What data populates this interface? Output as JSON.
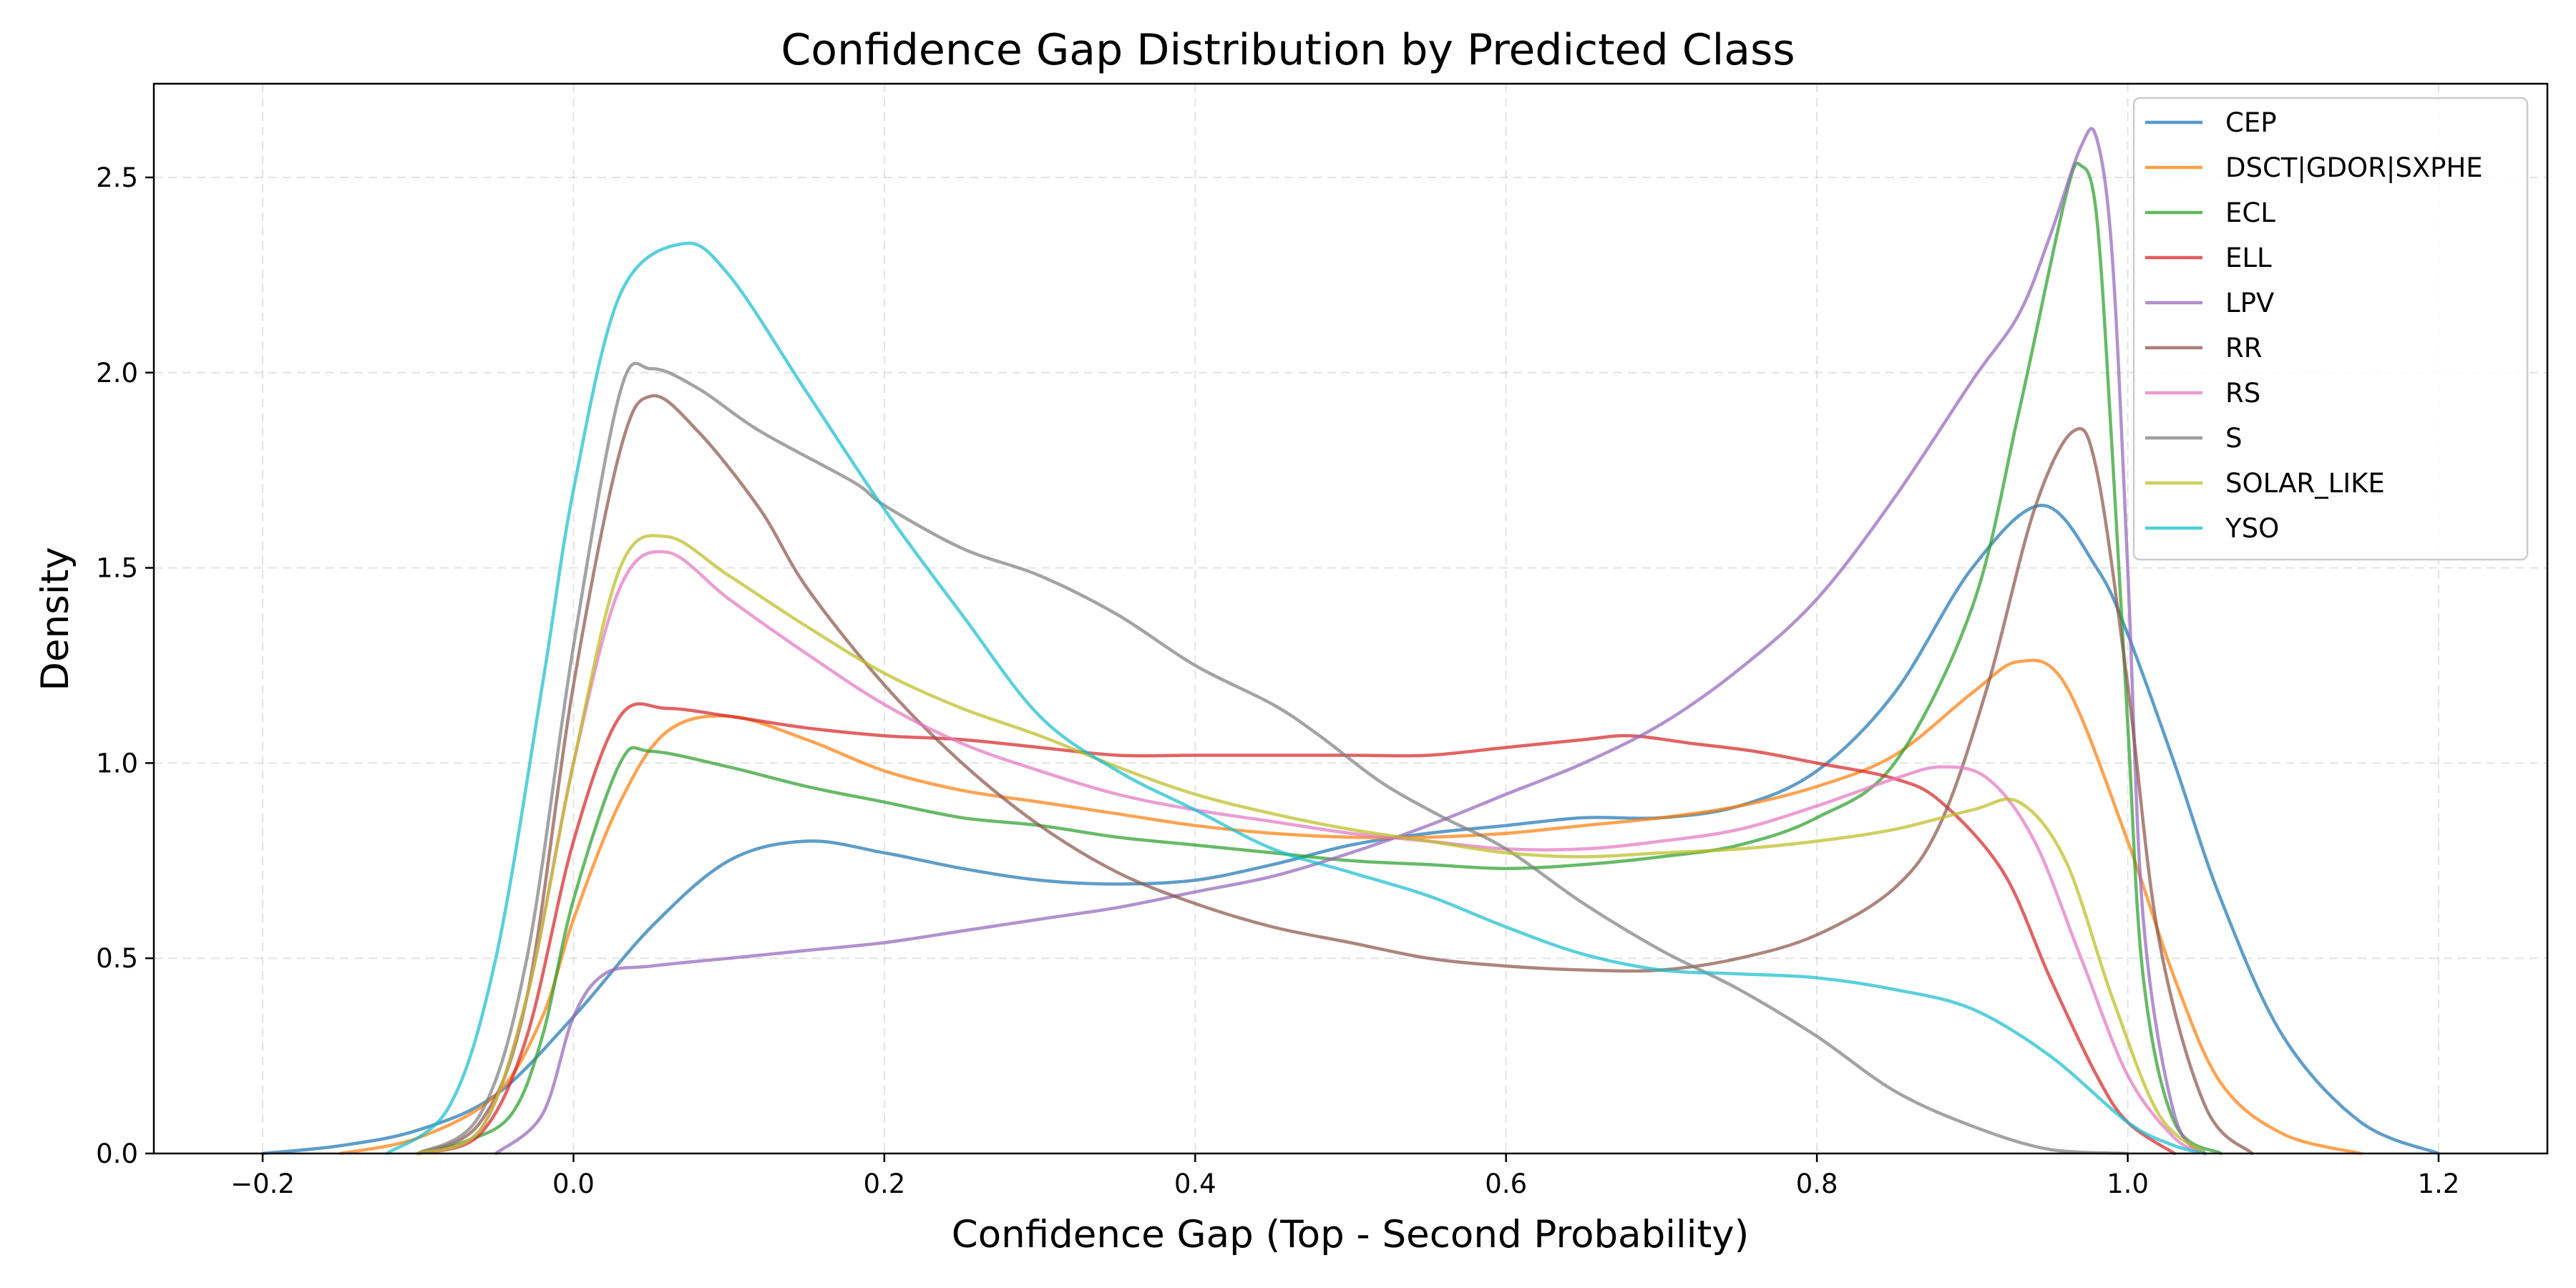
{
  "chart_data": {
    "type": "line",
    "title": "Confidence Gap Distribution by Predicted Class",
    "xlabel": "Confidence Gap (Top - Second Probability)",
    "ylabel": "Density",
    "xlim": [
      -0.27,
      1.27
    ],
    "ylim": [
      0,
      2.74
    ],
    "xticks": [
      -0.2,
      0.0,
      0.2,
      0.4,
      0.6,
      0.8,
      1.0,
      1.2
    ],
    "xtick_labels": [
      "−0.2",
      "0.0",
      "0.2",
      "0.4",
      "0.6",
      "0.8",
      "1.0",
      "1.2"
    ],
    "yticks": [
      0.0,
      0.5,
      1.0,
      1.5,
      2.0,
      2.5
    ],
    "ytick_labels": [
      "0.0",
      "0.5",
      "1.0",
      "1.5",
      "2.0",
      "2.5"
    ],
    "grid": true,
    "legend_position": "top-right",
    "series": [
      {
        "name": "CEP",
        "color": "#1f77b4",
        "points": [
          [
            -0.2,
            0.0
          ],
          [
            -0.15,
            0.02
          ],
          [
            -0.1,
            0.06
          ],
          [
            -0.05,
            0.15
          ],
          [
            0.0,
            0.35
          ],
          [
            0.05,
            0.58
          ],
          [
            0.1,
            0.75
          ],
          [
            0.15,
            0.8
          ],
          [
            0.2,
            0.77
          ],
          [
            0.25,
            0.73
          ],
          [
            0.3,
            0.7
          ],
          [
            0.35,
            0.69
          ],
          [
            0.4,
            0.7
          ],
          [
            0.45,
            0.74
          ],
          [
            0.5,
            0.79
          ],
          [
            0.55,
            0.82
          ],
          [
            0.6,
            0.84
          ],
          [
            0.65,
            0.86
          ],
          [
            0.7,
            0.86
          ],
          [
            0.75,
            0.89
          ],
          [
            0.8,
            0.98
          ],
          [
            0.85,
            1.18
          ],
          [
            0.9,
            1.5
          ],
          [
            0.945,
            1.66
          ],
          [
            0.98,
            1.5
          ],
          [
            1.0,
            1.33
          ],
          [
            1.03,
            1.0
          ],
          [
            1.06,
            0.65
          ],
          [
            1.1,
            0.3
          ],
          [
            1.15,
            0.08
          ],
          [
            1.2,
            0.0
          ]
        ]
      },
      {
        "name": "DSCT|GDOR|SXPHE",
        "color": "#ff7f0e",
        "points": [
          [
            -0.15,
            0.0
          ],
          [
            -0.1,
            0.04
          ],
          [
            -0.05,
            0.15
          ],
          [
            -0.02,
            0.35
          ],
          [
            0.0,
            0.6
          ],
          [
            0.03,
            0.9
          ],
          [
            0.06,
            1.08
          ],
          [
            0.1,
            1.12
          ],
          [
            0.15,
            1.06
          ],
          [
            0.2,
            0.98
          ],
          [
            0.25,
            0.93
          ],
          [
            0.3,
            0.9
          ],
          [
            0.35,
            0.87
          ],
          [
            0.4,
            0.84
          ],
          [
            0.45,
            0.82
          ],
          [
            0.5,
            0.81
          ],
          [
            0.55,
            0.81
          ],
          [
            0.6,
            0.82
          ],
          [
            0.65,
            0.84
          ],
          [
            0.7,
            0.86
          ],
          [
            0.75,
            0.89
          ],
          [
            0.8,
            0.94
          ],
          [
            0.85,
            1.02
          ],
          [
            0.9,
            1.18
          ],
          [
            0.93,
            1.26
          ],
          [
            0.96,
            1.2
          ],
          [
            1.0,
            0.8
          ],
          [
            1.03,
            0.45
          ],
          [
            1.06,
            0.18
          ],
          [
            1.1,
            0.05
          ],
          [
            1.15,
            0.0
          ]
        ]
      },
      {
        "name": "ECL",
        "color": "#2ca02c",
        "points": [
          [
            -0.1,
            0.0
          ],
          [
            -0.07,
            0.03
          ],
          [
            -0.04,
            0.1
          ],
          [
            -0.02,
            0.3
          ],
          [
            0.0,
            0.65
          ],
          [
            0.03,
            1.0
          ],
          [
            0.05,
            1.03
          ],
          [
            0.1,
            0.99
          ],
          [
            0.15,
            0.94
          ],
          [
            0.2,
            0.9
          ],
          [
            0.25,
            0.86
          ],
          [
            0.3,
            0.84
          ],
          [
            0.35,
            0.81
          ],
          [
            0.4,
            0.79
          ],
          [
            0.45,
            0.77
          ],
          [
            0.5,
            0.75
          ],
          [
            0.55,
            0.74
          ],
          [
            0.6,
            0.73
          ],
          [
            0.65,
            0.74
          ],
          [
            0.7,
            0.76
          ],
          [
            0.75,
            0.79
          ],
          [
            0.8,
            0.86
          ],
          [
            0.85,
            1.0
          ],
          [
            0.9,
            1.4
          ],
          [
            0.93,
            1.9
          ],
          [
            0.96,
            2.45
          ],
          [
            0.97,
            2.53
          ],
          [
            0.98,
            2.4
          ],
          [
            0.99,
            1.8
          ],
          [
            1.0,
            1.1
          ],
          [
            1.01,
            0.45
          ],
          [
            1.03,
            0.08
          ],
          [
            1.06,
            0.0
          ]
        ]
      },
      {
        "name": "ELL",
        "color": "#d62728",
        "points": [
          [
            -0.1,
            0.0
          ],
          [
            -0.06,
            0.05
          ],
          [
            -0.03,
            0.3
          ],
          [
            0.0,
            0.8
          ],
          [
            0.03,
            1.12
          ],
          [
            0.06,
            1.14
          ],
          [
            0.1,
            1.12
          ],
          [
            0.15,
            1.09
          ],
          [
            0.2,
            1.07
          ],
          [
            0.25,
            1.06
          ],
          [
            0.3,
            1.04
          ],
          [
            0.35,
            1.02
          ],
          [
            0.4,
            1.02
          ],
          [
            0.45,
            1.02
          ],
          [
            0.5,
            1.02
          ],
          [
            0.55,
            1.02
          ],
          [
            0.6,
            1.04
          ],
          [
            0.65,
            1.06
          ],
          [
            0.68,
            1.07
          ],
          [
            0.72,
            1.05
          ],
          [
            0.76,
            1.03
          ],
          [
            0.8,
            1.0
          ],
          [
            0.85,
            0.96
          ],
          [
            0.88,
            0.9
          ],
          [
            0.92,
            0.72
          ],
          [
            0.95,
            0.45
          ],
          [
            0.98,
            0.2
          ],
          [
            1.0,
            0.08
          ],
          [
            1.03,
            0.0
          ]
        ]
      },
      {
        "name": "LPV",
        "color": "#9467bd",
        "points": [
          [
            -0.05,
            0.0
          ],
          [
            -0.02,
            0.1
          ],
          [
            0.0,
            0.35
          ],
          [
            0.02,
            0.46
          ],
          [
            0.05,
            0.48
          ],
          [
            0.1,
            0.5
          ],
          [
            0.15,
            0.52
          ],
          [
            0.2,
            0.54
          ],
          [
            0.25,
            0.57
          ],
          [
            0.3,
            0.6
          ],
          [
            0.35,
            0.63
          ],
          [
            0.4,
            0.67
          ],
          [
            0.45,
            0.71
          ],
          [
            0.5,
            0.77
          ],
          [
            0.55,
            0.84
          ],
          [
            0.6,
            0.92
          ],
          [
            0.65,
            1.0
          ],
          [
            0.7,
            1.1
          ],
          [
            0.75,
            1.24
          ],
          [
            0.8,
            1.42
          ],
          [
            0.85,
            1.68
          ],
          [
            0.9,
            1.98
          ],
          [
            0.93,
            2.15
          ],
          [
            0.95,
            2.35
          ],
          [
            0.97,
            2.58
          ],
          [
            0.98,
            2.6
          ],
          [
            0.99,
            2.3
          ],
          [
            1.0,
            1.5
          ],
          [
            1.01,
            0.6
          ],
          [
            1.03,
            0.1
          ],
          [
            1.05,
            0.0
          ]
        ]
      },
      {
        "name": "RR",
        "color": "#8c564b",
        "points": [
          [
            -0.1,
            0.0
          ],
          [
            -0.06,
            0.08
          ],
          [
            -0.03,
            0.4
          ],
          [
            0.0,
            1.2
          ],
          [
            0.03,
            1.8
          ],
          [
            0.05,
            1.94
          ],
          [
            0.08,
            1.85
          ],
          [
            0.12,
            1.65
          ],
          [
            0.15,
            1.45
          ],
          [
            0.2,
            1.2
          ],
          [
            0.25,
            1.0
          ],
          [
            0.3,
            0.84
          ],
          [
            0.35,
            0.72
          ],
          [
            0.4,
            0.64
          ],
          [
            0.45,
            0.58
          ],
          [
            0.5,
            0.54
          ],
          [
            0.55,
            0.5
          ],
          [
            0.6,
            0.48
          ],
          [
            0.65,
            0.47
          ],
          [
            0.7,
            0.47
          ],
          [
            0.75,
            0.5
          ],
          [
            0.8,
            0.56
          ],
          [
            0.85,
            0.68
          ],
          [
            0.88,
            0.85
          ],
          [
            0.91,
            1.2
          ],
          [
            0.94,
            1.65
          ],
          [
            0.965,
            1.85
          ],
          [
            0.98,
            1.75
          ],
          [
            1.0,
            1.2
          ],
          [
            1.02,
            0.55
          ],
          [
            1.05,
            0.12
          ],
          [
            1.08,
            0.0
          ]
        ]
      },
      {
        "name": "RS",
        "color": "#e377c2",
        "points": [
          [
            -0.1,
            0.0
          ],
          [
            -0.06,
            0.06
          ],
          [
            -0.03,
            0.4
          ],
          [
            0.0,
            1.0
          ],
          [
            0.03,
            1.45
          ],
          [
            0.06,
            1.54
          ],
          [
            0.1,
            1.42
          ],
          [
            0.15,
            1.28
          ],
          [
            0.2,
            1.15
          ],
          [
            0.25,
            1.05
          ],
          [
            0.3,
            0.98
          ],
          [
            0.35,
            0.92
          ],
          [
            0.4,
            0.88
          ],
          [
            0.45,
            0.85
          ],
          [
            0.5,
            0.82
          ],
          [
            0.55,
            0.8
          ],
          [
            0.6,
            0.78
          ],
          [
            0.65,
            0.78
          ],
          [
            0.7,
            0.8
          ],
          [
            0.75,
            0.83
          ],
          [
            0.8,
            0.89
          ],
          [
            0.85,
            0.96
          ],
          [
            0.88,
            0.99
          ],
          [
            0.91,
            0.96
          ],
          [
            0.94,
            0.8
          ],
          [
            0.97,
            0.5
          ],
          [
            1.0,
            0.2
          ],
          [
            1.03,
            0.04
          ],
          [
            1.05,
            0.0
          ]
        ]
      },
      {
        "name": "S",
        "color": "#7f7f7f",
        "points": [
          [
            -0.1,
            0.0
          ],
          [
            -0.06,
            0.1
          ],
          [
            -0.03,
            0.5
          ],
          [
            0.0,
            1.3
          ],
          [
            0.03,
            1.95
          ],
          [
            0.05,
            2.01
          ],
          [
            0.08,
            1.96
          ],
          [
            0.12,
            1.85
          ],
          [
            0.18,
            1.72
          ],
          [
            0.2,
            1.66
          ],
          [
            0.25,
            1.55
          ],
          [
            0.3,
            1.48
          ],
          [
            0.35,
            1.38
          ],
          [
            0.4,
            1.25
          ],
          [
            0.45,
            1.15
          ],
          [
            0.48,
            1.07
          ],
          [
            0.52,
            0.95
          ],
          [
            0.56,
            0.86
          ],
          [
            0.6,
            0.78
          ],
          [
            0.65,
            0.64
          ],
          [
            0.7,
            0.52
          ],
          [
            0.75,
            0.42
          ],
          [
            0.8,
            0.3
          ],
          [
            0.85,
            0.16
          ],
          [
            0.9,
            0.07
          ],
          [
            0.95,
            0.01
          ],
          [
            1.0,
            0.0
          ]
        ]
      },
      {
        "name": "SOLAR_LIKE",
        "color": "#bcbd22",
        "points": [
          [
            -0.1,
            0.0
          ],
          [
            -0.06,
            0.06
          ],
          [
            -0.03,
            0.4
          ],
          [
            0.0,
            1.0
          ],
          [
            0.03,
            1.5
          ],
          [
            0.06,
            1.58
          ],
          [
            0.1,
            1.48
          ],
          [
            0.15,
            1.35
          ],
          [
            0.2,
            1.23
          ],
          [
            0.25,
            1.14
          ],
          [
            0.3,
            1.07
          ],
          [
            0.35,
            0.99
          ],
          [
            0.4,
            0.92
          ],
          [
            0.45,
            0.87
          ],
          [
            0.5,
            0.83
          ],
          [
            0.55,
            0.8
          ],
          [
            0.6,
            0.77
          ],
          [
            0.65,
            0.76
          ],
          [
            0.7,
            0.77
          ],
          [
            0.75,
            0.78
          ],
          [
            0.8,
            0.8
          ],
          [
            0.85,
            0.83
          ],
          [
            0.9,
            0.88
          ],
          [
            0.93,
            0.9
          ],
          [
            0.96,
            0.75
          ],
          [
            0.99,
            0.4
          ],
          [
            1.02,
            0.1
          ],
          [
            1.05,
            0.0
          ]
        ]
      },
      {
        "name": "YSO",
        "color": "#17becf",
        "points": [
          [
            -0.12,
            0.0
          ],
          [
            -0.08,
            0.12
          ],
          [
            -0.05,
            0.5
          ],
          [
            -0.02,
            1.2
          ],
          [
            0.0,
            1.7
          ],
          [
            0.03,
            2.2
          ],
          [
            0.07,
            2.33
          ],
          [
            0.1,
            2.25
          ],
          [
            0.15,
            1.95
          ],
          [
            0.2,
            1.65
          ],
          [
            0.25,
            1.38
          ],
          [
            0.3,
            1.12
          ],
          [
            0.35,
            0.98
          ],
          [
            0.4,
            0.88
          ],
          [
            0.45,
            0.78
          ],
          [
            0.5,
            0.72
          ],
          [
            0.55,
            0.66
          ],
          [
            0.6,
            0.58
          ],
          [
            0.65,
            0.51
          ],
          [
            0.7,
            0.47
          ],
          [
            0.75,
            0.46
          ],
          [
            0.8,
            0.45
          ],
          [
            0.85,
            0.42
          ],
          [
            0.9,
            0.37
          ],
          [
            0.95,
            0.25
          ],
          [
            1.0,
            0.08
          ],
          [
            1.03,
            0.02
          ],
          [
            1.05,
            0.0
          ]
        ]
      }
    ]
  }
}
